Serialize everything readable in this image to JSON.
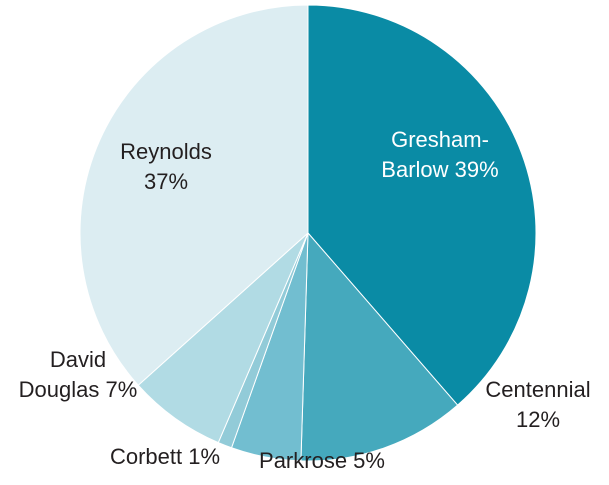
{
  "chart_data": {
    "type": "pie",
    "title": "",
    "slices": [
      {
        "label_lines": [
          "Gresham-",
          "Barlow 39%"
        ],
        "name": "Gresham-Barlow",
        "value": 39,
        "color": "#0a8ba5",
        "label_color": "#ffffff"
      },
      {
        "label_lines": [
          "Centennial",
          "12%"
        ],
        "name": "Centennial",
        "value": 12,
        "color": "#45a9bd",
        "label_color": "#231f20"
      },
      {
        "label_lines": [
          "Parkrose 5%"
        ],
        "name": "Parkrose",
        "value": 5,
        "color": "#72bed0",
        "label_color": "#231f20"
      },
      {
        "label_lines": [
          "Corbett 1%"
        ],
        "name": "Corbett",
        "value": 1,
        "color": "#92cbd8",
        "label_color": "#231f20"
      },
      {
        "label_lines": [
          "David",
          "Douglas 7%"
        ],
        "name": "David Douglas",
        "value": 7,
        "color": "#b1dbe4",
        "label_color": "#231f20"
      },
      {
        "label_lines": [
          "Reynolds",
          "37%"
        ],
        "name": "Reynolds",
        "value": 37,
        "color": "#dcedf2",
        "label_color": "#231f20"
      }
    ]
  }
}
